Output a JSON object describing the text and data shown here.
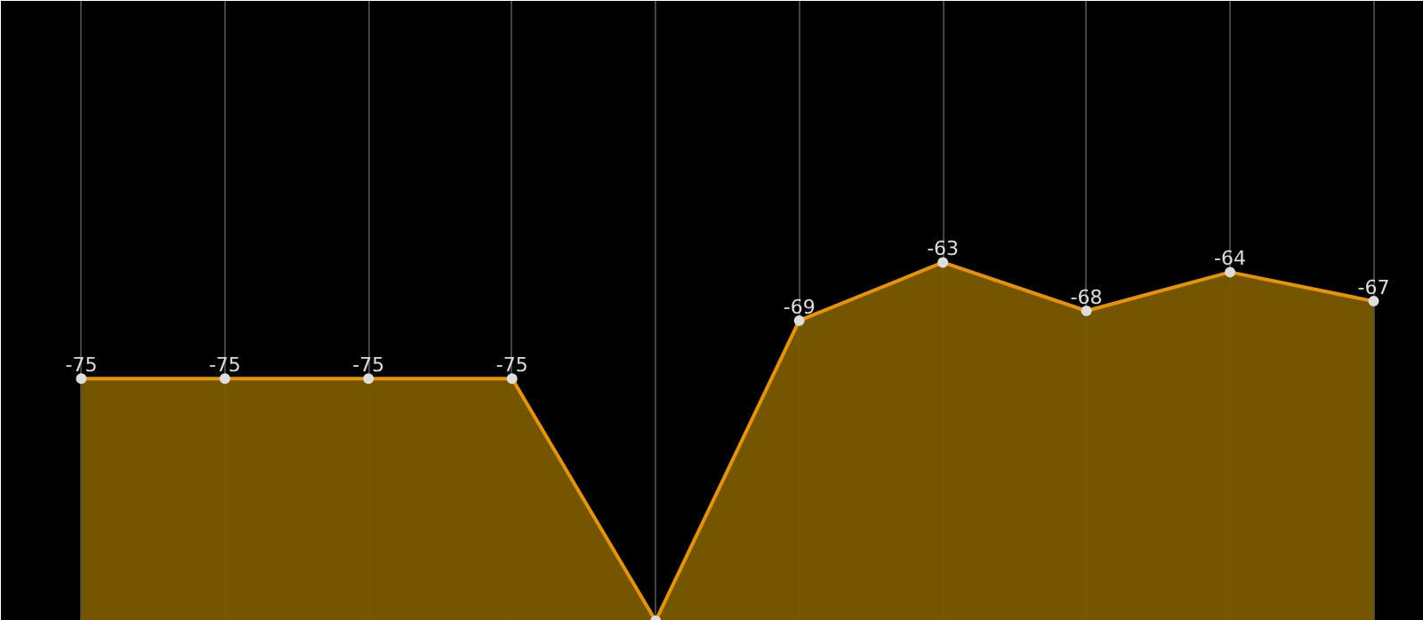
{
  "chart_data": {
    "type": "area",
    "categories": [
      null,
      null,
      null,
      null,
      null,
      null,
      null,
      null,
      null,
      null
    ],
    "values": [
      -75,
      -75,
      -75,
      -75,
      -100,
      -69,
      -63,
      -68,
      -64,
      -67
    ],
    "value_labels": [
      "-75",
      "-75",
      "-75",
      "-75",
      null,
      "-69",
      "-63",
      "-68",
      "-64",
      "-67"
    ],
    "color": "#e69500",
    "marker": "circle",
    "grid": "x",
    "tick_labels": false,
    "ylim": [
      -100,
      -36
    ]
  }
}
